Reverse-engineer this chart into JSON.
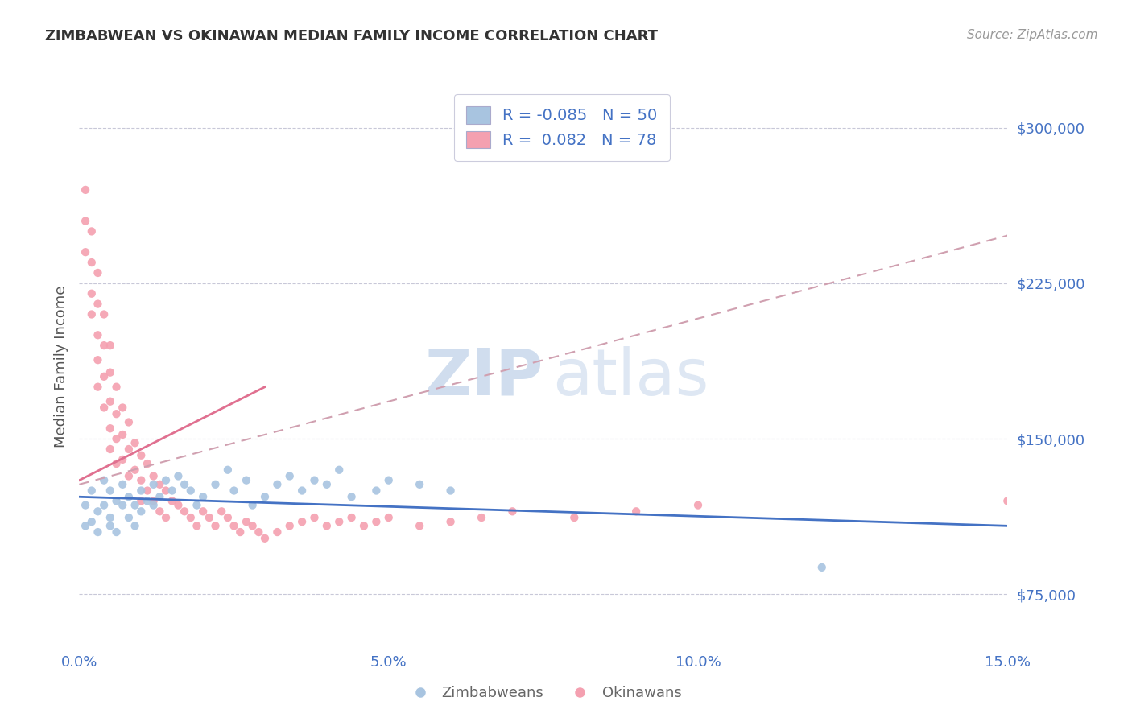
{
  "title": "ZIMBABWEAN VS OKINAWAN MEDIAN FAMILY INCOME CORRELATION CHART",
  "source_text": "Source: ZipAtlas.com",
  "ylabel": "Median Family Income",
  "xlim": [
    0.0,
    0.15
  ],
  "ylim": [
    50000,
    320000
  ],
  "xticks": [
    0.0,
    0.05,
    0.1,
    0.15
  ],
  "xticklabels": [
    "0.0%",
    "5.0%",
    "10.0%",
    "15.0%"
  ],
  "yticks": [
    75000,
    150000,
    225000,
    300000
  ],
  "yticklabels": [
    "$75,000",
    "$150,000",
    "$225,000",
    "$300,000"
  ],
  "zimbabwean_R": -0.085,
  "zimbabwean_N": 50,
  "okinawan_R": 0.082,
  "okinawan_N": 78,
  "blue_color": "#4472C4",
  "blue_light": "#A8C4E0",
  "pink_color": "#F4A0B0",
  "pink_line": "#E07090",
  "tick_color": "#4472C4",
  "grid_color": "#C8C8D8",
  "background_color": "#FFFFFF",
  "zimbabwean_x": [
    0.001,
    0.001,
    0.002,
    0.002,
    0.003,
    0.003,
    0.004,
    0.004,
    0.005,
    0.005,
    0.005,
    0.006,
    0.006,
    0.007,
    0.007,
    0.008,
    0.008,
    0.009,
    0.009,
    0.01,
    0.01,
    0.011,
    0.012,
    0.012,
    0.013,
    0.014,
    0.015,
    0.016,
    0.017,
    0.018,
    0.019,
    0.02,
    0.022,
    0.024,
    0.025,
    0.027,
    0.028,
    0.03,
    0.032,
    0.034,
    0.036,
    0.038,
    0.04,
    0.042,
    0.044,
    0.048,
    0.05,
    0.055,
    0.06,
    0.12
  ],
  "zimbabwean_y": [
    118000,
    108000,
    125000,
    110000,
    115000,
    105000,
    130000,
    118000,
    125000,
    112000,
    108000,
    120000,
    105000,
    128000,
    118000,
    122000,
    112000,
    118000,
    108000,
    125000,
    115000,
    120000,
    128000,
    118000,
    122000,
    130000,
    125000,
    132000,
    128000,
    125000,
    118000,
    122000,
    128000,
    135000,
    125000,
    130000,
    118000,
    122000,
    128000,
    132000,
    125000,
    130000,
    128000,
    135000,
    122000,
    125000,
    130000,
    128000,
    125000,
    88000
  ],
  "okinawan_x": [
    0.001,
    0.001,
    0.001,
    0.002,
    0.002,
    0.002,
    0.002,
    0.003,
    0.003,
    0.003,
    0.003,
    0.003,
    0.004,
    0.004,
    0.004,
    0.004,
    0.005,
    0.005,
    0.005,
    0.005,
    0.005,
    0.006,
    0.006,
    0.006,
    0.006,
    0.007,
    0.007,
    0.007,
    0.008,
    0.008,
    0.008,
    0.009,
    0.009,
    0.01,
    0.01,
    0.01,
    0.011,
    0.011,
    0.012,
    0.012,
    0.013,
    0.013,
    0.014,
    0.014,
    0.015,
    0.016,
    0.017,
    0.018,
    0.019,
    0.02,
    0.021,
    0.022,
    0.023,
    0.024,
    0.025,
    0.026,
    0.027,
    0.028,
    0.029,
    0.03,
    0.032,
    0.034,
    0.036,
    0.038,
    0.04,
    0.042,
    0.044,
    0.046,
    0.048,
    0.05,
    0.055,
    0.06,
    0.065,
    0.07,
    0.08,
    0.09,
    0.1,
    0.15
  ],
  "okinawan_y": [
    270000,
    255000,
    240000,
    250000,
    235000,
    220000,
    210000,
    230000,
    215000,
    200000,
    188000,
    175000,
    210000,
    195000,
    180000,
    165000,
    195000,
    182000,
    168000,
    155000,
    145000,
    175000,
    162000,
    150000,
    138000,
    165000,
    152000,
    140000,
    158000,
    145000,
    132000,
    148000,
    135000,
    142000,
    130000,
    120000,
    138000,
    125000,
    132000,
    120000,
    128000,
    115000,
    125000,
    112000,
    120000,
    118000,
    115000,
    112000,
    108000,
    115000,
    112000,
    108000,
    115000,
    112000,
    108000,
    105000,
    110000,
    108000,
    105000,
    102000,
    105000,
    108000,
    110000,
    112000,
    108000,
    110000,
    112000,
    108000,
    110000,
    112000,
    108000,
    110000,
    112000,
    115000,
    112000,
    115000,
    118000,
    120000
  ],
  "zim_trend_x": [
    0.0,
    0.15
  ],
  "zim_trend_y": [
    122000,
    108000
  ],
  "oki_trend_x": [
    0.0,
    0.15
  ],
  "oki_trend_y": [
    128000,
    248000
  ]
}
